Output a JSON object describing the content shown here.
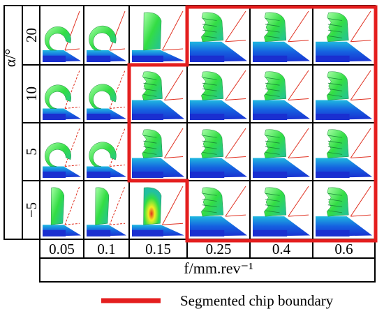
{
  "figure": {
    "y_axis_label": "α/°",
    "x_axis_label": "f/mm.rev⁻¹",
    "rows": [
      {
        "alpha": "20",
        "boundary_from_col": 3
      },
      {
        "alpha": "10",
        "boundary_from_col": 2
      },
      {
        "alpha": "5",
        "boundary_from_col": 2
      },
      {
        "alpha": "−5",
        "boundary_from_col": 3
      }
    ],
    "columns": [
      "0.05",
      "0.1",
      "0.15",
      "0.25",
      "0.4",
      "0.6"
    ],
    "legend": {
      "label": "Segmented chip boundary",
      "color": "#e41e1e"
    },
    "colors": {
      "chip_green": "#33dd44",
      "chip_light": "#aaffaa",
      "workpiece_blue": "#1a2fd0",
      "workpiece_cyan": "#1fb8e0",
      "hot_yellow": "#f2ee22",
      "hot_red": "#e03020",
      "boundary_red": "#e41e1e"
    }
  }
}
